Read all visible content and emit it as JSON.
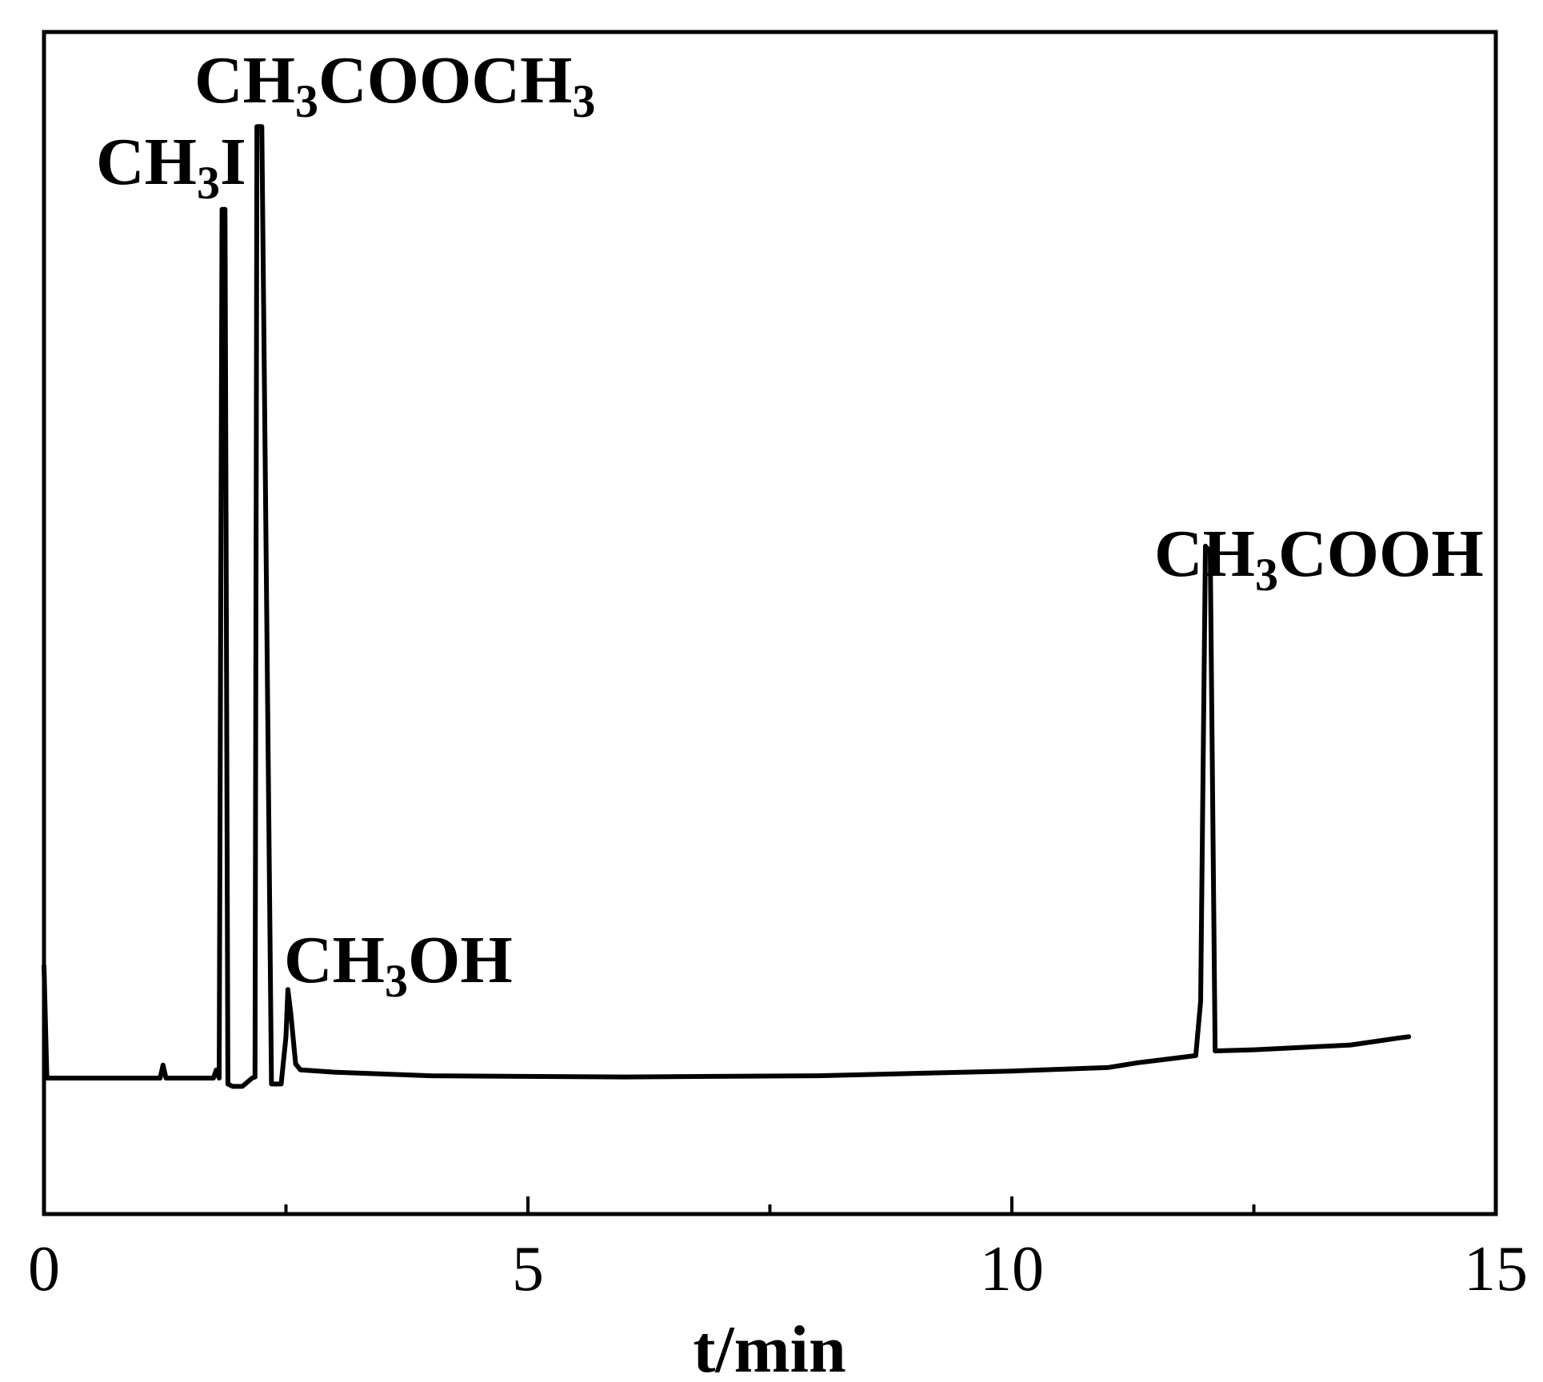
{
  "chart_data": {
    "type": "line",
    "title": "",
    "xlabel": "t/min",
    "ylabel": "",
    "xlim": [
      0,
      15
    ],
    "ylim": [
      0,
      100
    ],
    "grid": false,
    "legend": "none",
    "x_ticks": [
      0,
      5,
      10,
      15
    ],
    "x_minor_ticks": [
      2.5,
      7.5,
      12.5
    ],
    "x_tick_labels": [
      "0",
      "5",
      "10",
      "15"
    ],
    "line_color": "#000000",
    "series": [
      {
        "x": [
          0,
          0.03,
          0.06,
          1.2,
          1.23,
          1.26,
          1.75,
          1.78,
          1.81,
          1.84,
          1.87,
          1.9,
          1.95,
          2.05,
          2.15,
          2.18,
          2.2,
          2.25,
          2.35,
          2.45,
          2.5,
          2.52,
          2.55,
          2.6,
          2.65,
          3.0,
          4.0,
          6.0,
          8.0,
          10.0,
          11.0,
          11.3,
          11.5,
          11.9,
          11.95,
          12.0,
          12.05,
          12.1,
          12.5,
          13.0,
          13.5,
          14.0,
          14.1
        ],
        "y": [
          21,
          11.5,
          11.5,
          11.5,
          12.6,
          11.5,
          11.5,
          12.2,
          11.5,
          85.0,
          85.0,
          11.0,
          10.8,
          10.8,
          11.5,
          11.6,
          92.0,
          92.0,
          11.0,
          11.0,
          15.0,
          19.0,
          17.0,
          12.7,
          12.2,
          12.0,
          11.7,
          11.6,
          11.7,
          12.1,
          12.4,
          12.8,
          13.0,
          13.4,
          18.0,
          56.5,
          56.0,
          13.8,
          13.9,
          14.1,
          14.3,
          14.9,
          15.0
        ]
      }
    ],
    "annotations": [
      {
        "base": "CH",
        "sub": "3",
        "rest": "I",
        "x": 1.86
      },
      {
        "base": "CH",
        "sub": "3",
        "rest": "COOCH",
        "sub2": "3",
        "x": 2.23
      },
      {
        "base": "CH",
        "sub": "3",
        "rest": "OH",
        "x": 2.6
      },
      {
        "base": "CH",
        "sub": "3",
        "rest": "COOH",
        "x": 12.03
      }
    ]
  }
}
